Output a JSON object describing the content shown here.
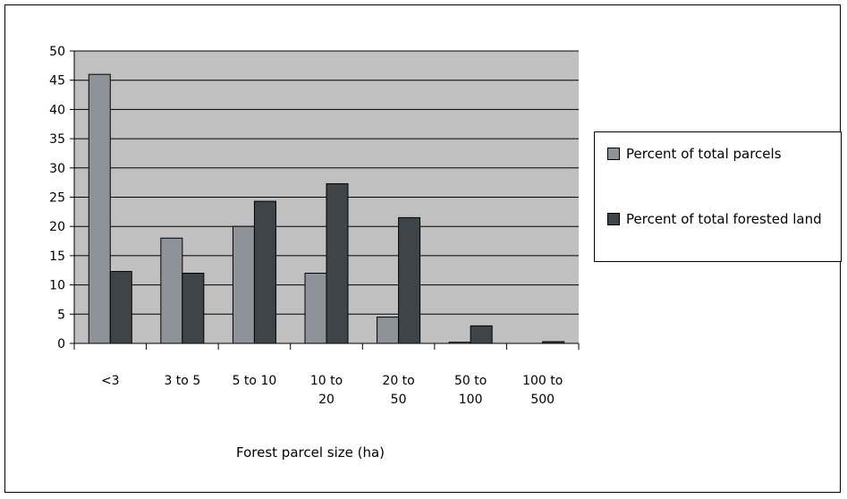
{
  "chart_data": {
    "type": "bar",
    "categories": [
      "<3",
      "3 to 5",
      "5 to 10",
      "10 to 20",
      "20 to 50",
      "50 to 100",
      "100 to 500"
    ],
    "category_lines": [
      [
        "<3"
      ],
      [
        "3 to 5"
      ],
      [
        "5 to 10"
      ],
      [
        "10 to",
        "20"
      ],
      [
        "20 to",
        "50"
      ],
      [
        "50 to",
        "100"
      ],
      [
        "100 to",
        "500"
      ]
    ],
    "series": [
      {
        "name": "Percent of total parcels",
        "values": [
          46,
          18,
          20,
          12,
          4.5,
          0.2,
          0
        ],
        "color": "#8e9399"
      },
      {
        "name": "Percent of total forested land",
        "values": [
          12.3,
          12,
          24.3,
          27.3,
          21.5,
          3,
          0.3
        ],
        "color": "#3f4448"
      }
    ],
    "title": "",
    "xlabel": "Forest parcel size (ha)",
    "ylabel": "",
    "ylim": [
      0,
      50
    ],
    "yticks": [
      0,
      5,
      10,
      15,
      20,
      25,
      30,
      35,
      40,
      45,
      50
    ],
    "plot_background": "#c0c0c0",
    "grid": true,
    "legend_position": "right"
  }
}
